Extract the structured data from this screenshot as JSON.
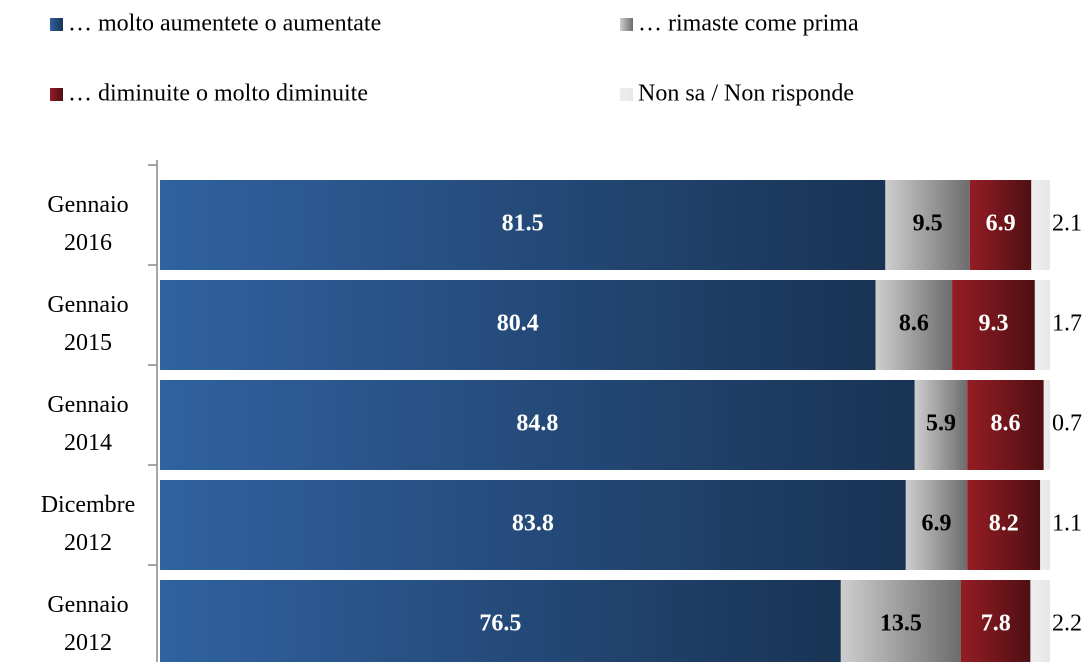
{
  "chart_data": {
    "type": "stacked_bar_horizontal",
    "categories": [
      "Gennaio 2016",
      "Gennaio 2015",
      "Gennaio 2014",
      "Dicembre 2012",
      "Gennaio 2012"
    ],
    "series": [
      {
        "name": "… molto aumentete o aumentate",
        "color": "#2e5d98",
        "values": [
          81.5,
          80.4,
          84.8,
          83.8,
          76.5
        ]
      },
      {
        "name": "… rimaste come prima",
        "color": "#c4c4c4",
        "values": [
          9.5,
          8.6,
          5.9,
          6.9,
          13.5
        ]
      },
      {
        "name": "… diminuite  o molto diminuite",
        "color": "#8e1c22",
        "values": [
          6.9,
          9.3,
          8.6,
          8.2,
          7.8
        ]
      },
      {
        "name": "Non sa / Non risponde",
        "color": "#eeeeee",
        "values": [
          2.1,
          1.7,
          0.7,
          1.1,
          2.2
        ]
      }
    ],
    "xlim": [
      0,
      100
    ]
  }
}
